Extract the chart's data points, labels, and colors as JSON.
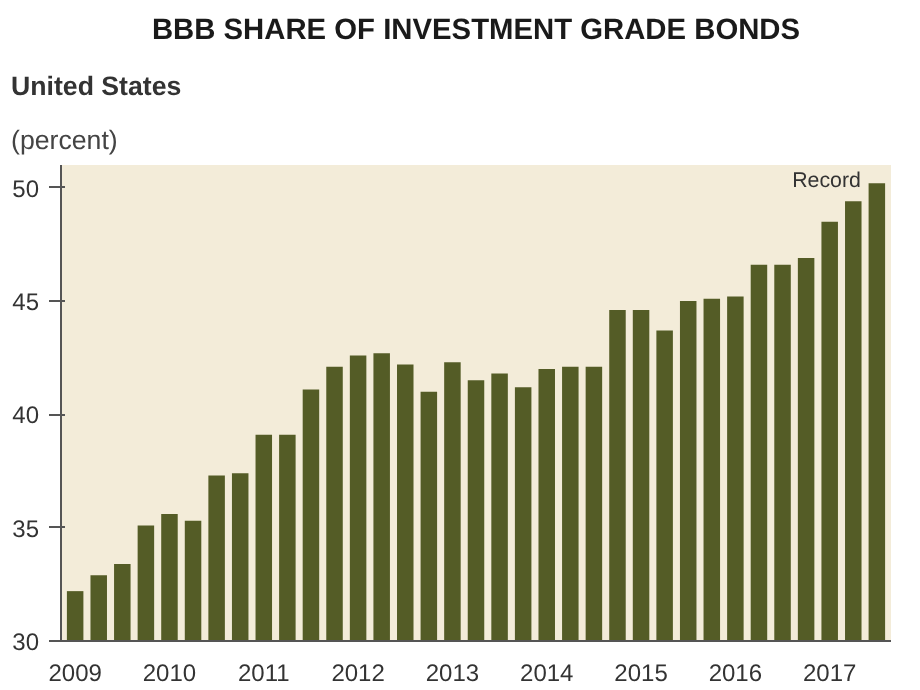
{
  "chart_data": {
    "type": "bar",
    "title": "BBB SHARE OF INVESTMENT GRADE BONDS",
    "subtitle": "United States",
    "ylabel": "(percent)",
    "categories": [
      "2009",
      null,
      null,
      null,
      "2010",
      null,
      null,
      null,
      "2011",
      null,
      null,
      null,
      "2012",
      null,
      null,
      null,
      "2013",
      null,
      null,
      null,
      "2014",
      null,
      null,
      null,
      "2015",
      null,
      null,
      null,
      "2016",
      null,
      null,
      null,
      "2017",
      null,
      null
    ],
    "values": [
      32.2,
      32.9,
      33.4,
      35.1,
      35.6,
      35.3,
      37.3,
      37.4,
      39.1,
      39.1,
      41.1,
      42.1,
      42.6,
      42.7,
      42.2,
      41.0,
      42.3,
      41.5,
      41.8,
      41.2,
      42.0,
      42.1,
      42.1,
      44.6,
      44.6,
      43.7,
      45.0,
      45.1,
      45.2,
      46.6,
      46.6,
      46.9,
      48.5,
      49.4,
      50.2
    ],
    "color": "#545c26",
    "ylim": [
      30,
      51
    ],
    "yticks": [
      30,
      35,
      40,
      45,
      50
    ],
    "grid": false,
    "annotations": [
      "Record"
    ]
  }
}
